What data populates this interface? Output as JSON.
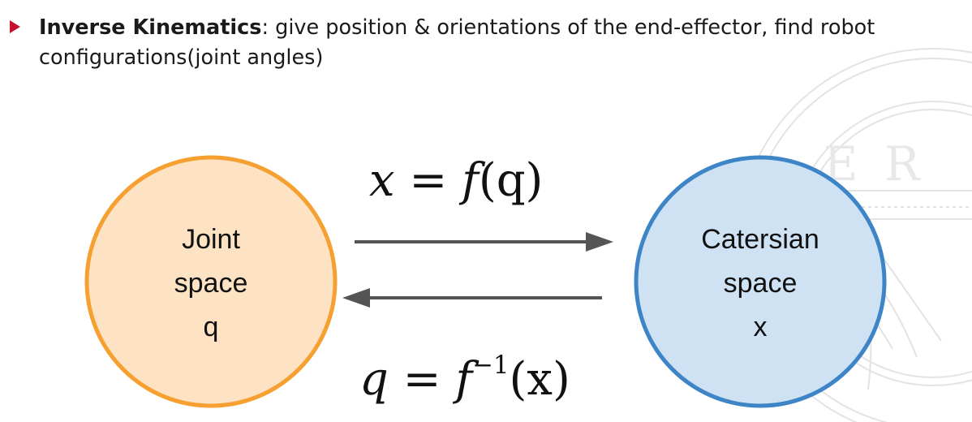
{
  "bullet": {
    "term": "Inverse Kinematics",
    "description": ": give position & orientations of the end-effector, find robot configurations(joint angles)"
  },
  "nodes": {
    "joint": {
      "line1": "Joint",
      "line2": "space",
      "line3": "q",
      "fill": "#fde2c4",
      "stroke": "#f5a030"
    },
    "cartesian": {
      "line1": "Catersian",
      "line2": "space",
      "line3": "x",
      "fill": "#cfe2f3",
      "stroke": "#3d85c6"
    }
  },
  "formulas": {
    "forward": {
      "lhs": "x",
      "eq": " = ",
      "func": "f",
      "arg": "(q)"
    },
    "inverse": {
      "lhs": "q",
      "eq": " = ",
      "func": "f",
      "exponent": "−1",
      "arg": "(x)"
    }
  },
  "colors": {
    "bullet_marker": "#c8102e",
    "arrow": "#555555",
    "watermark": "#dcdcdc"
  },
  "icons": {
    "bullet": "triangle-right-icon",
    "watermark": "university-seal-icon"
  }
}
